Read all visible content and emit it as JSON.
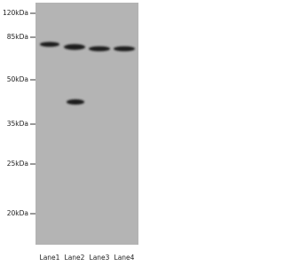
{
  "markers": [
    "120kDa",
    "85kDa",
    "50kDa",
    "35kDa",
    "25kDa",
    "20kDa"
  ],
  "lanes": [
    "Lane1",
    "Lane2",
    "Lane3",
    "Lane4"
  ]
}
